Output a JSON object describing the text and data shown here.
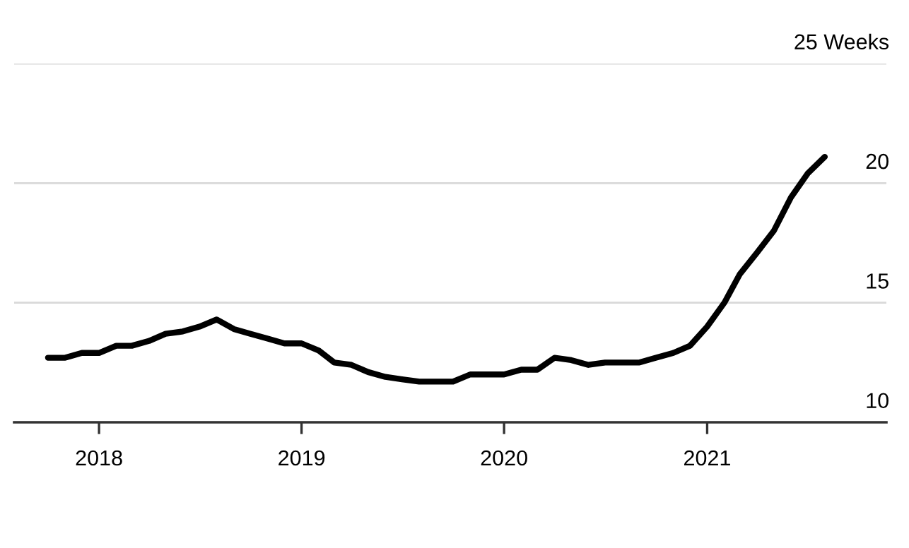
{
  "chart_data": {
    "type": "line",
    "x": [
      "2017-10",
      "2017-11",
      "2017-12",
      "2018-01",
      "2018-02",
      "2018-03",
      "2018-04",
      "2018-05",
      "2018-06",
      "2018-07",
      "2018-08",
      "2018-09",
      "2018-10",
      "2018-11",
      "2018-12",
      "2019-01",
      "2019-02",
      "2019-03",
      "2019-04",
      "2019-05",
      "2019-06",
      "2019-07",
      "2019-08",
      "2019-09",
      "2019-10",
      "2019-11",
      "2019-12",
      "2020-01",
      "2020-02",
      "2020-03",
      "2020-04",
      "2020-05",
      "2020-06",
      "2020-07",
      "2020-08",
      "2020-09",
      "2020-10",
      "2020-11",
      "2020-12",
      "2021-01",
      "2021-02",
      "2021-03",
      "2021-04",
      "2021-05",
      "2021-06",
      "2021-07",
      "2021-08"
    ],
    "series": [
      {
        "color": "#000000",
        "values": [
          12.7,
          12.7,
          12.9,
          12.9,
          13.2,
          13.2,
          13.4,
          13.7,
          13.8,
          14.0,
          14.3,
          13.9,
          13.7,
          13.5,
          13.3,
          13.3,
          13.0,
          12.5,
          12.4,
          12.1,
          11.9,
          11.8,
          11.7,
          11.7,
          11.7,
          12.0,
          12.0,
          12.0,
          12.2,
          12.2,
          12.7,
          12.6,
          12.4,
          12.5,
          12.5,
          12.5,
          12.7,
          12.9,
          13.2,
          14.0,
          15.0,
          16.2,
          17.1,
          18.0,
          19.4,
          20.4,
          21.1
        ]
      }
    ],
    "xlim": [
      "2017-08-01",
      "2021-11-20"
    ],
    "xticks": [
      {
        "value": "2018-01-01",
        "label": "2018"
      },
      {
        "value": "2019-01-01",
        "label": "2019"
      },
      {
        "value": "2020-01-01",
        "label": "2020"
      },
      {
        "value": "2021-01-01",
        "label": "2021"
      }
    ],
    "ylim": [
      10,
      25
    ],
    "yticks": [
      10,
      15,
      20,
      {
        "value": 25,
        "label": "25 Weeks"
      }
    ],
    "grid": "y",
    "line_style": "solid",
    "marker": "none"
  }
}
